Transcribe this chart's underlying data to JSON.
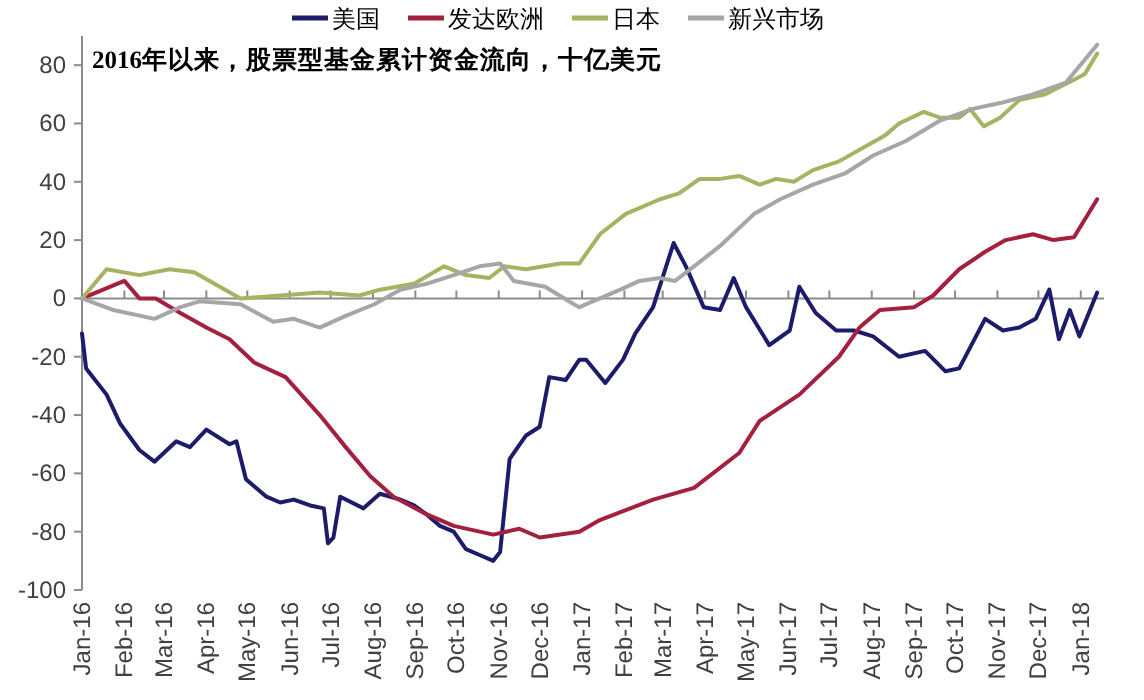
{
  "chart_data": {
    "type": "line",
    "title": "2016年以来，股票型基金累计资金流向，十亿美元",
    "legend": "top",
    "xlim": [
      "2016-01-01",
      "2018-01-18"
    ],
    "ylim": [
      -100,
      90
    ],
    "yticks": [
      -100,
      -80,
      -60,
      -40,
      -20,
      0,
      20,
      40,
      60,
      80
    ],
    "xticks": [
      {
        "value": "2016-01-01",
        "label": "Jan-16"
      },
      {
        "value": "2016-02-01",
        "label": "Feb-16"
      },
      {
        "value": "2016-03-01",
        "label": "Mar-16"
      },
      {
        "value": "2016-04-01",
        "label": "Apr-16"
      },
      {
        "value": "2016-05-01",
        "label": "May-16"
      },
      {
        "value": "2016-06-01",
        "label": "Jun-16"
      },
      {
        "value": "2016-07-01",
        "label": "Jul-16"
      },
      {
        "value": "2016-08-01",
        "label": "Aug-16"
      },
      {
        "value": "2016-09-01",
        "label": "Sep-16"
      },
      {
        "value": "2016-10-01",
        "label": "Oct-16"
      },
      {
        "value": "2016-11-01",
        "label": "Nov-16"
      },
      {
        "value": "2016-12-01",
        "label": "Dec-16"
      },
      {
        "value": "2017-01-01",
        "label": "Jan-17"
      },
      {
        "value": "2017-02-01",
        "label": "Feb-17"
      },
      {
        "value": "2017-03-01",
        "label": "Mar-17"
      },
      {
        "value": "2017-04-01",
        "label": "Apr-17"
      },
      {
        "value": "2017-05-01",
        "label": "May-17"
      },
      {
        "value": "2017-06-01",
        "label": "Jun-17"
      },
      {
        "value": "2017-07-01",
        "label": "Jul-17"
      },
      {
        "value": "2017-08-01",
        "label": "Aug-17"
      },
      {
        "value": "2017-09-01",
        "label": "Sep-17"
      },
      {
        "value": "2017-10-01",
        "label": "Oct-17"
      },
      {
        "value": "2017-11-01",
        "label": "Nov-17"
      },
      {
        "value": "2017-12-01",
        "label": "Dec-17"
      },
      {
        "value": "2018-01-01",
        "label": "Jan-18"
      }
    ],
    "series": [
      {
        "name": "美国",
        "color": "#1c1c6b",
        "x": [
          "2016-01-01",
          "2016-01-04",
          "2016-01-19",
          "2016-01-29",
          "2016-02-12",
          "2016-02-23",
          "2016-03-10",
          "2016-03-20",
          "2016-04-01",
          "2016-04-18",
          "2016-04-23",
          "2016-04-30",
          "2016-05-15",
          "2016-05-25",
          "2016-06-04",
          "2016-06-16",
          "2016-06-26",
          "2016-06-29",
          "2016-07-03",
          "2016-07-08",
          "2016-07-25",
          "2016-08-06",
          "2016-08-21",
          "2016-08-31",
          "2016-09-09",
          "2016-09-19",
          "2016-09-29",
          "2016-10-08",
          "2016-10-18",
          "2016-10-28",
          "2016-11-02",
          "2016-11-09",
          "2016-11-21",
          "2016-12-01",
          "2016-12-08",
          "2016-12-20",
          "2016-12-30",
          "2017-01-04",
          "2017-01-18",
          "2017-01-31",
          "2017-02-09",
          "2017-02-22",
          "2017-03-09",
          "2017-03-18",
          "2017-03-31",
          "2017-04-12",
          "2017-04-22",
          "2017-05-01",
          "2017-05-18",
          "2017-06-02",
          "2017-06-09",
          "2017-06-21",
          "2017-07-06",
          "2017-07-19",
          "2017-08-02",
          "2017-08-21",
          "2017-09-09",
          "2017-09-24",
          "2017-10-04",
          "2017-10-23",
          "2017-11-05",
          "2017-11-17",
          "2017-11-29",
          "2017-12-09",
          "2017-12-16",
          "2017-12-24",
          "2017-12-31",
          "2018-01-13"
        ],
        "values": [
          -12,
          -24,
          -33,
          -43,
          -52,
          -56,
          -49,
          -51,
          -45,
          -50,
          -49,
          -62,
          -68,
          -70,
          -69,
          -71,
          -72,
          -84,
          -82,
          -68,
          -72,
          -67,
          -69,
          -71,
          -74,
          -78,
          -80,
          -86,
          -88,
          -90,
          -87,
          -55,
          -47,
          -44,
          -27,
          -28,
          -21,
          -21,
          -29,
          -21,
          -12,
          -3,
          19,
          11,
          -3,
          -4,
          7,
          -3,
          -16,
          -11,
          4,
          -5,
          -11,
          -11,
          -13,
          -20,
          -18,
          -25,
          -24,
          -7,
          -11,
          -10,
          -7,
          3,
          -14,
          -4,
          -13,
          2
        ]
      },
      {
        "name": "发达欧洲",
        "color": "#a3203f",
        "x": [
          "2016-01-01",
          "2016-02-01",
          "2016-02-12",
          "2016-02-24",
          "2016-03-13",
          "2016-04-01",
          "2016-04-18",
          "2016-05-06",
          "2016-05-29",
          "2016-06-23",
          "2016-07-12",
          "2016-07-30",
          "2016-08-16",
          "2016-09-09",
          "2016-09-29",
          "2016-10-28",
          "2016-11-16",
          "2016-12-01",
          "2016-12-30",
          "2017-01-14",
          "2017-02-22",
          "2017-03-24",
          "2017-04-26",
          "2017-05-11",
          "2017-06-09",
          "2017-07-08",
          "2017-07-23",
          "2017-08-07",
          "2017-09-01",
          "2017-09-15",
          "2017-10-04",
          "2017-10-23",
          "2017-11-07",
          "2017-11-27",
          "2017-12-12",
          "2017-12-27",
          "2018-01-13"
        ],
        "values": [
          0,
          6,
          0,
          0,
          -5,
          -10,
          -14,
          -22,
          -27,
          -40,
          -51,
          -61,
          -68,
          -74,
          -78,
          -81,
          -79,
          -82,
          -80,
          -76,
          -69,
          -65,
          -53,
          -42,
          -33,
          -20,
          -10,
          -4,
          -3,
          1,
          10,
          16,
          20,
          22,
          20,
          21,
          34
        ]
      },
      {
        "name": "日本",
        "color": "#a9b163",
        "x": [
          "2016-01-01",
          "2016-01-19",
          "2016-02-12",
          "2016-03-05",
          "2016-03-23",
          "2016-04-07",
          "2016-04-26",
          "2016-05-25",
          "2016-06-23",
          "2016-07-22",
          "2016-08-06",
          "2016-08-31",
          "2016-09-22",
          "2016-10-08",
          "2016-10-25",
          "2016-11-05",
          "2016-11-21",
          "2016-12-16",
          "2016-12-30",
          "2017-01-14",
          "2017-02-02",
          "2017-02-27",
          "2017-03-13",
          "2017-03-28",
          "2017-04-12",
          "2017-04-26",
          "2017-05-11",
          "2017-05-23",
          "2017-06-05",
          "2017-06-19",
          "2017-07-08",
          "2017-07-27",
          "2017-08-11",
          "2017-08-21",
          "2017-09-08",
          "2017-09-20",
          "2017-10-04",
          "2017-10-12",
          "2017-10-22",
          "2017-11-03",
          "2017-11-17",
          "2017-12-06",
          "2017-12-27",
          "2018-01-04",
          "2018-01-13"
        ],
        "values": [
          0,
          10,
          8,
          10,
          9,
          5,
          0,
          1,
          2,
          1,
          3,
          5,
          11,
          8,
          7,
          11,
          10,
          12,
          12,
          22,
          29,
          34,
          36,
          41,
          41,
          42,
          39,
          41,
          40,
          44,
          47,
          52,
          56,
          60,
          64,
          62,
          62,
          65,
          59,
          62,
          68,
          70,
          75,
          77,
          84
        ]
      },
      {
        "name": "新兴市场",
        "color": "#a6a6a6",
        "x": [
          "2016-01-01",
          "2016-01-24",
          "2016-02-23",
          "2016-03-13",
          "2016-03-27",
          "2016-04-26",
          "2016-05-20",
          "2016-06-04",
          "2016-06-23",
          "2016-07-12",
          "2016-08-02",
          "2016-08-21",
          "2016-09-09",
          "2016-09-29",
          "2016-10-18",
          "2016-11-02",
          "2016-11-12",
          "2016-12-05",
          "2016-12-26",
          "2016-12-30",
          "2017-01-14",
          "2017-01-29",
          "2017-02-12",
          "2017-02-27",
          "2017-03-10",
          "2017-03-24",
          "2017-04-12",
          "2017-05-07",
          "2017-05-26",
          "2017-06-19",
          "2017-07-13",
          "2017-08-02",
          "2017-08-26",
          "2017-09-20",
          "2017-10-14",
          "2017-11-03",
          "2017-11-27",
          "2017-12-21",
          "2018-01-13"
        ],
        "values": [
          0,
          -4,
          -7,
          -3,
          -1,
          -2,
          -8,
          -7,
          -10,
          -6,
          -2,
          3,
          5,
          8,
          11,
          12,
          6,
          4,
          -2,
          -3,
          0,
          3,
          6,
          7,
          6,
          11,
          18,
          29,
          34,
          39,
          43,
          49,
          54,
          61,
          65,
          67,
          70,
          74,
          87
        ]
      }
    ]
  }
}
